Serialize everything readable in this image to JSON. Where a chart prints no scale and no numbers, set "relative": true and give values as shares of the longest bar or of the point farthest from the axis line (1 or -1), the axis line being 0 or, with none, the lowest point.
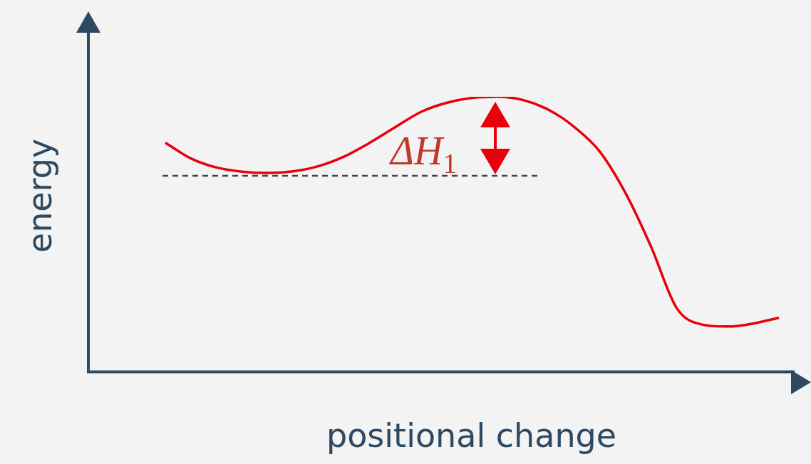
{
  "chart_data": {
    "type": "line",
    "relative": true,
    "xlabel": "positional change",
    "ylabel": "energy",
    "categories": [
      null,
      null,
      null,
      null,
      null,
      null,
      null,
      null,
      null,
      null,
      null,
      null,
      null,
      null,
      null,
      null,
      null,
      null,
      null,
      null,
      null,
      null,
      null,
      null,
      null
    ],
    "series": [
      {
        "color": "#e8000b",
        "values": [
          0.833,
          0.776,
          0.743,
          0.728,
          0.723,
          0.729,
          0.748,
          0.783,
          0.833,
          0.89,
          0.945,
          0.978,
          0.996,
          1,
          0.988,
          0.952,
          0.89,
          0.8,
          0.65,
          0.455,
          0.232,
          0.172,
          0.165,
          0.176,
          0.197
        ]
      }
    ],
    "ref_lines": [
      {
        "axis": "y",
        "value": 0.713,
        "color": "#2e4a62",
        "line_style": "dashed"
      }
    ],
    "annotations": [
      "ΔH$_{1}$"
    ],
    "grid": false,
    "legend": false,
    "marker": "none",
    "line_style": "solid"
  }
}
